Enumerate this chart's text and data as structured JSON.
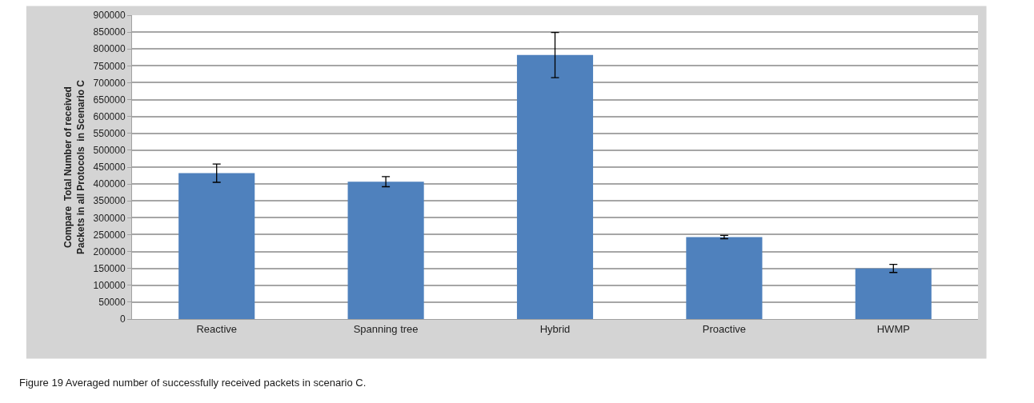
{
  "chart_data": {
    "type": "bar",
    "ylabel": "Compare  Total Number of received Packets in all Protocols  in Scenario C",
    "categories": [
      "Reactive",
      "Spanning tree",
      "Hybrid",
      "Proactive",
      "HWMP"
    ],
    "values": [
      432000,
      407000,
      782000,
      243000,
      150000
    ],
    "errors": [
      27000,
      15000,
      67000,
      5000,
      12000
    ],
    "color": "#4f81bd",
    "ylim": [
      0,
      900000
    ],
    "yticks": [
      0,
      50000,
      100000,
      150000,
      200000,
      250000,
      300000,
      350000,
      400000,
      450000,
      500000,
      550000,
      600000,
      650000,
      700000,
      750000,
      800000,
      850000,
      900000
    ],
    "grid": "y",
    "annotations": [
      "Figure 19 Averaged number of successfully received packets in scenario C."
    ]
  }
}
